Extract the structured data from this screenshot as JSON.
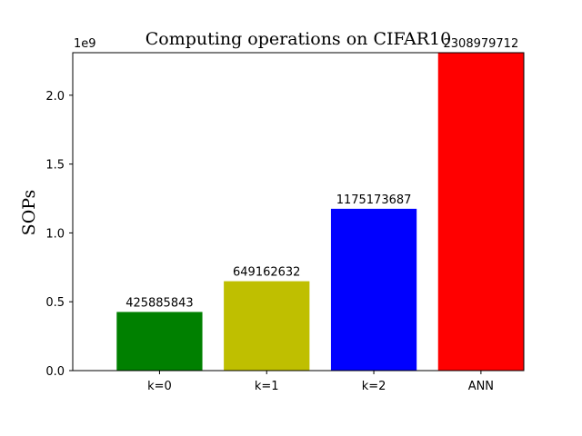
{
  "chart_data": {
    "type": "bar",
    "title": "Computing operations on CIFAR10",
    "xlabel": "",
    "ylabel": "SOPs",
    "categories": [
      "k=0",
      "k=1",
      "k=2",
      "ANN"
    ],
    "values": [
      425885843,
      649162632,
      1175173687,
      2308979712
    ],
    "value_labels": [
      "425885843",
      "649162632",
      "1175173687",
      "2308979712"
    ],
    "colors": [
      "#008000",
      "#bfbf00",
      "#0000ff",
      "#ff0000"
    ],
    "ylim": [
      0,
      2308979712
    ],
    "yticks": [
      0.0,
      0.5,
      1.0,
      1.5,
      2.0
    ],
    "ytick_labels": [
      "0.0",
      "0.5",
      "1.0",
      "1.5",
      "2.0"
    ],
    "y_offset_label": "1e9",
    "grid": false,
    "legend": "none"
  }
}
